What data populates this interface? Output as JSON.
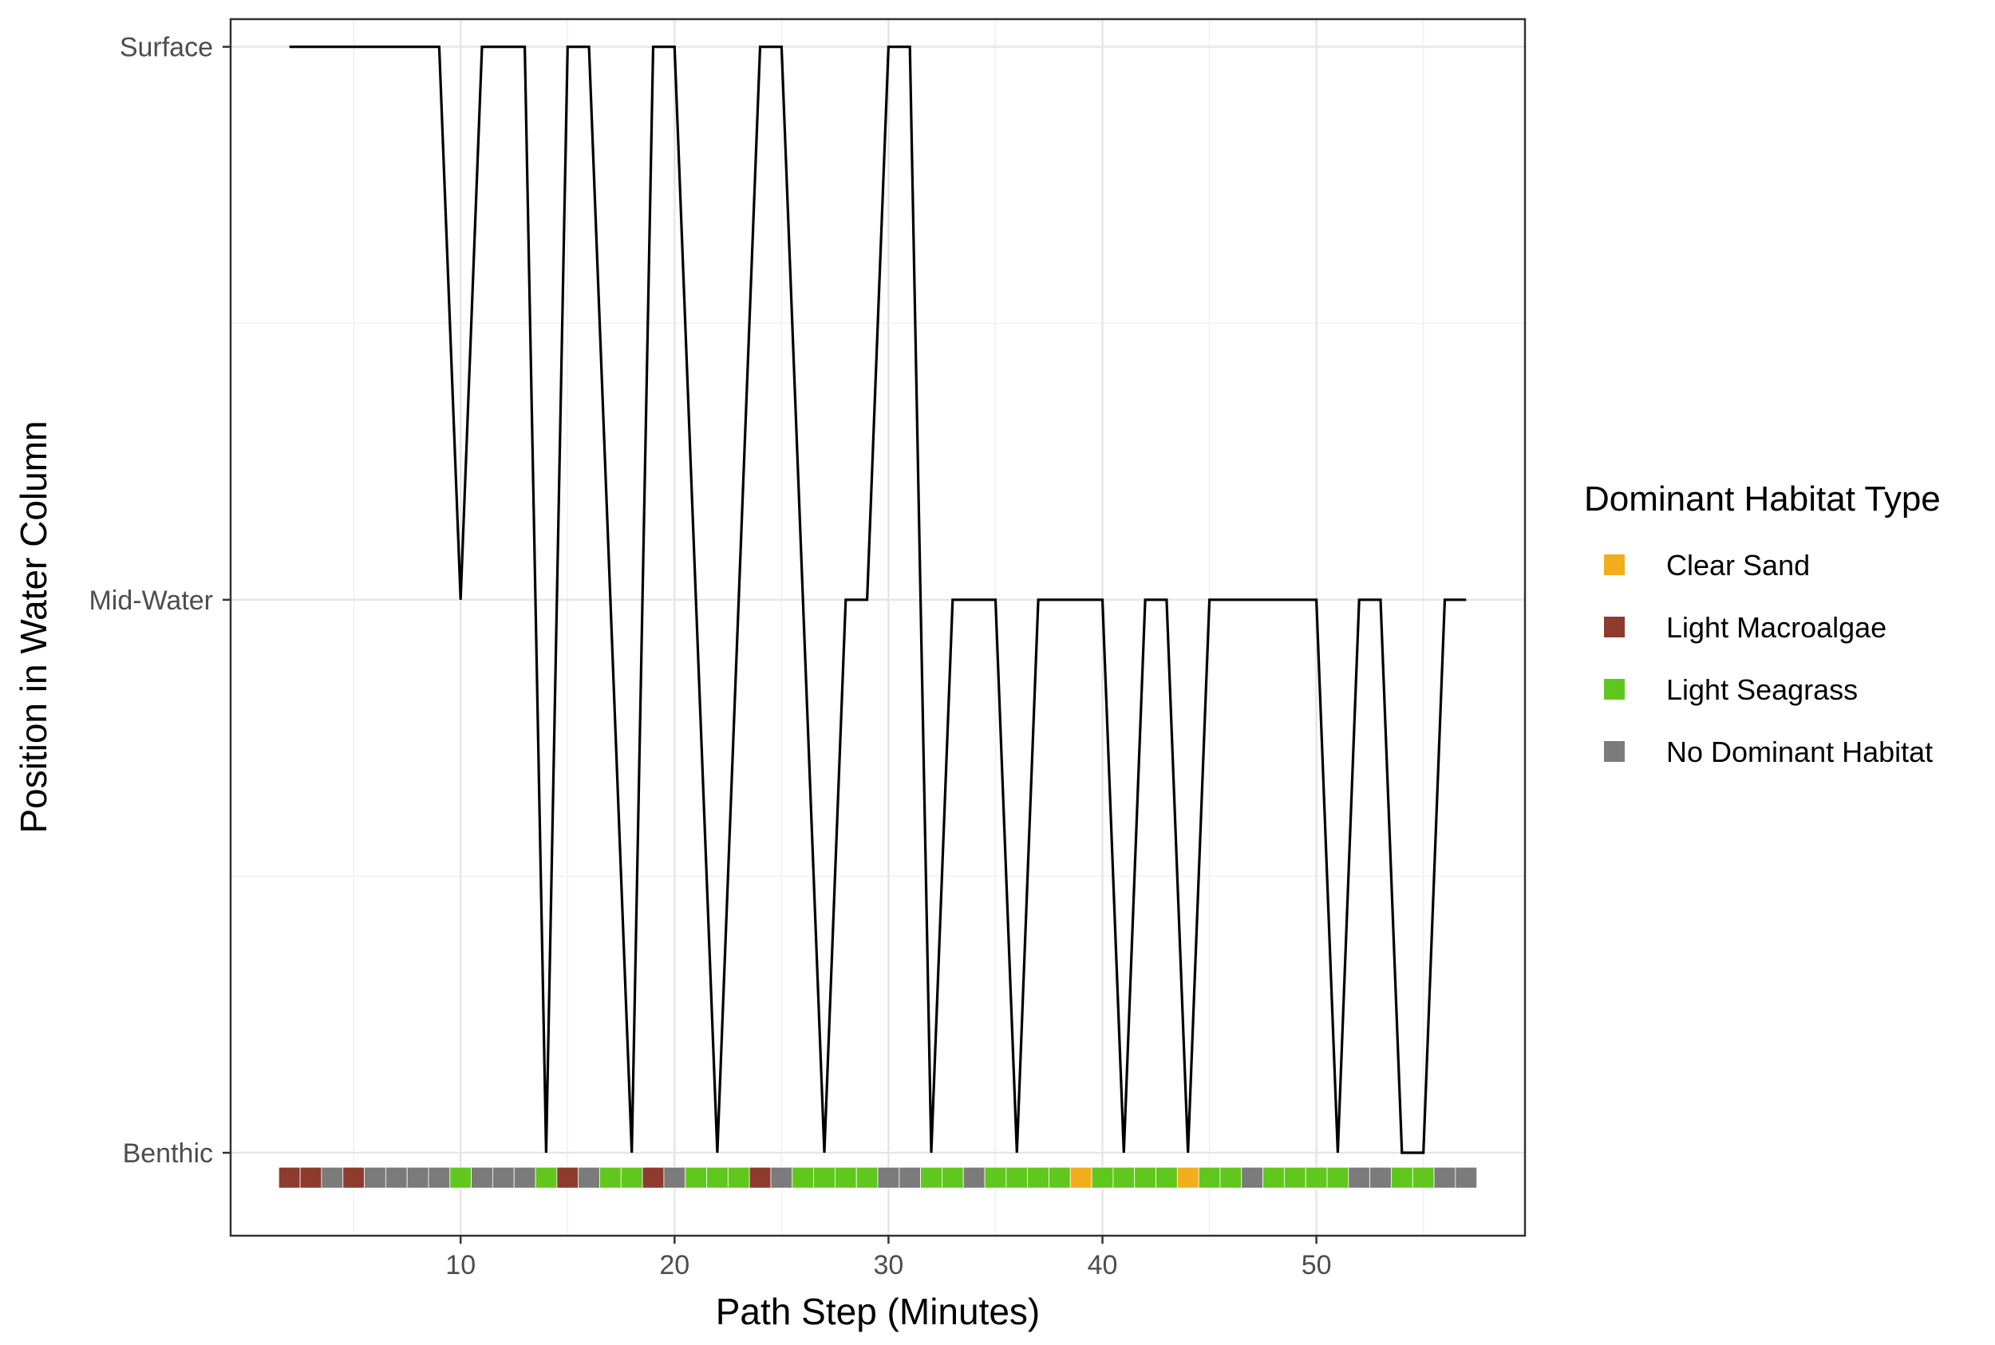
{
  "chart_data": {
    "type": "line",
    "title": "",
    "xlabel": "Path Step (Minutes)",
    "ylabel": "Position in Water Column",
    "xlim": [
      -0.75,
      59.75
    ],
    "ylim": [
      0.85,
      3.05
    ],
    "grid": true,
    "x_ticks": [
      10,
      20,
      30,
      40,
      50
    ],
    "y_ticks": [
      {
        "value": 1,
        "label": "Benthic"
      },
      {
        "value": 2,
        "label": "Mid-Water"
      },
      {
        "value": 3,
        "label": "Surface"
      }
    ],
    "series": [
      {
        "color": "#000000",
        "points": [
          [
            2,
            3
          ],
          [
            3,
            3
          ],
          [
            4,
            3
          ],
          [
            5,
            3
          ],
          [
            6,
            3
          ],
          [
            7,
            3
          ],
          [
            8,
            3
          ],
          [
            9,
            3
          ],
          [
            10,
            2
          ],
          [
            11,
            3
          ],
          [
            12,
            3
          ],
          [
            13,
            3
          ],
          [
            14,
            1
          ],
          [
            15,
            3
          ],
          [
            16,
            3
          ],
          [
            17,
            2
          ],
          [
            18,
            1
          ],
          [
            19,
            3
          ],
          [
            20,
            3
          ],
          [
            21,
            2
          ],
          [
            22,
            1
          ],
          [
            23,
            2
          ],
          [
            24,
            3
          ],
          [
            25,
            3
          ],
          [
            26,
            2
          ],
          [
            27,
            1
          ],
          [
            28,
            2
          ],
          [
            29,
            2
          ],
          [
            30,
            3
          ],
          [
            31,
            3
          ],
          [
            32,
            1
          ],
          [
            33,
            2
          ],
          [
            34,
            2
          ],
          [
            35,
            2
          ],
          [
            36,
            1
          ],
          [
            37,
            2
          ],
          [
            38,
            2
          ],
          [
            39,
            2
          ],
          [
            40,
            2
          ],
          [
            41,
            1
          ],
          [
            42,
            2
          ],
          [
            43,
            2
          ],
          [
            44,
            1
          ],
          [
            45,
            2
          ],
          [
            46,
            2
          ],
          [
            47,
            2
          ],
          [
            48,
            2
          ],
          [
            49,
            2
          ],
          [
            50,
            2
          ],
          [
            51,
            1
          ],
          [
            52,
            2
          ],
          [
            53,
            2
          ],
          [
            54,
            1
          ],
          [
            55,
            1
          ],
          [
            56,
            2
          ],
          [
            57,
            2
          ]
        ]
      }
    ],
    "habitat_strip": {
      "y": 0.955,
      "steps": [
        {
          "x": 2,
          "habitat": "Light Macroalgae"
        },
        {
          "x": 3,
          "habitat": "Light Macroalgae"
        },
        {
          "x": 4,
          "habitat": "No Dominant Habitat"
        },
        {
          "x": 5,
          "habitat": "Light Macroalgae"
        },
        {
          "x": 6,
          "habitat": "No Dominant Habitat"
        },
        {
          "x": 7,
          "habitat": "No Dominant Habitat"
        },
        {
          "x": 8,
          "habitat": "No Dominant Habitat"
        },
        {
          "x": 9,
          "habitat": "No Dominant Habitat"
        },
        {
          "x": 10,
          "habitat": "Light Seagrass"
        },
        {
          "x": 11,
          "habitat": "No Dominant Habitat"
        },
        {
          "x": 12,
          "habitat": "No Dominant Habitat"
        },
        {
          "x": 13,
          "habitat": "No Dominant Habitat"
        },
        {
          "x": 14,
          "habitat": "Light Seagrass"
        },
        {
          "x": 15,
          "habitat": "Light Macroalgae"
        },
        {
          "x": 16,
          "habitat": "No Dominant Habitat"
        },
        {
          "x": 17,
          "habitat": "Light Seagrass"
        },
        {
          "x": 18,
          "habitat": "Light Seagrass"
        },
        {
          "x": 19,
          "habitat": "Light Macroalgae"
        },
        {
          "x": 20,
          "habitat": "No Dominant Habitat"
        },
        {
          "x": 21,
          "habitat": "Light Seagrass"
        },
        {
          "x": 22,
          "habitat": "Light Seagrass"
        },
        {
          "x": 23,
          "habitat": "Light Seagrass"
        },
        {
          "x": 24,
          "habitat": "Light Macroalgae"
        },
        {
          "x": 25,
          "habitat": "No Dominant Habitat"
        },
        {
          "x": 26,
          "habitat": "Light Seagrass"
        },
        {
          "x": 27,
          "habitat": "Light Seagrass"
        },
        {
          "x": 28,
          "habitat": "Light Seagrass"
        },
        {
          "x": 29,
          "habitat": "Light Seagrass"
        },
        {
          "x": 30,
          "habitat": "No Dominant Habitat"
        },
        {
          "x": 31,
          "habitat": "No Dominant Habitat"
        },
        {
          "x": 32,
          "habitat": "Light Seagrass"
        },
        {
          "x": 33,
          "habitat": "Light Seagrass"
        },
        {
          "x": 34,
          "habitat": "No Dominant Habitat"
        },
        {
          "x": 35,
          "habitat": "Light Seagrass"
        },
        {
          "x": 36,
          "habitat": "Light Seagrass"
        },
        {
          "x": 37,
          "habitat": "Light Seagrass"
        },
        {
          "x": 38,
          "habitat": "Light Seagrass"
        },
        {
          "x": 39,
          "habitat": "Clear Sand"
        },
        {
          "x": 40,
          "habitat": "Light Seagrass"
        },
        {
          "x": 41,
          "habitat": "Light Seagrass"
        },
        {
          "x": 42,
          "habitat": "Light Seagrass"
        },
        {
          "x": 43,
          "habitat": "Light Seagrass"
        },
        {
          "x": 44,
          "habitat": "Clear Sand"
        },
        {
          "x": 45,
          "habitat": "Light Seagrass"
        },
        {
          "x": 46,
          "habitat": "Light Seagrass"
        },
        {
          "x": 47,
          "habitat": "No Dominant Habitat"
        },
        {
          "x": 48,
          "habitat": "Light Seagrass"
        },
        {
          "x": 49,
          "habitat": "Light Seagrass"
        },
        {
          "x": 50,
          "habitat": "Light Seagrass"
        },
        {
          "x": 51,
          "habitat": "Light Seagrass"
        },
        {
          "x": 52,
          "habitat": "No Dominant Habitat"
        },
        {
          "x": 53,
          "habitat": "No Dominant Habitat"
        },
        {
          "x": 54,
          "habitat": "Light Seagrass"
        },
        {
          "x": 55,
          "habitat": "Light Seagrass"
        },
        {
          "x": 56,
          "habitat": "No Dominant Habitat"
        },
        {
          "x": 57,
          "habitat": "No Dominant Habitat"
        }
      ]
    },
    "legend": {
      "title": "Dominant Habitat Type",
      "placement": "right",
      "entries": [
        {
          "label": "Clear Sand",
          "color": "#f2ad1c"
        },
        {
          "label": "Light Macroalgae",
          "color": "#8e3b2e"
        },
        {
          "label": "Light Seagrass",
          "color": "#62c71c"
        },
        {
          "label": "No Dominant Habitat",
          "color": "#7b7b7b"
        }
      ]
    }
  }
}
